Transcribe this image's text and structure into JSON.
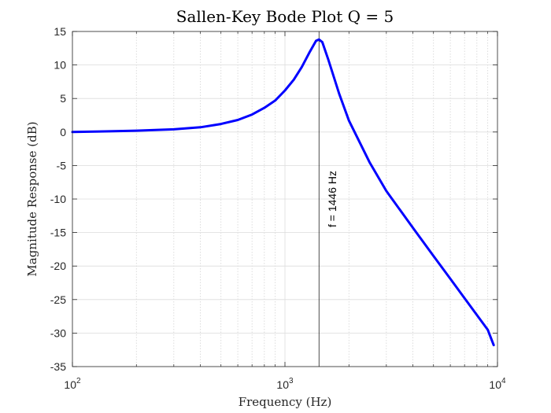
{
  "chart_data": {
    "type": "line",
    "title": "Sallen-Key Bode Plot Q = 5",
    "xlabel": "Frequency (Hz)",
    "ylabel": "Magnitude Response (dB)",
    "xscale": "log",
    "xlim": [
      100,
      10000
    ],
    "ylim": [
      -35,
      15
    ],
    "x_ticks": [
      {
        "base": "10",
        "exp": "2",
        "value": 100
      },
      {
        "base": "10",
        "exp": "3",
        "value": 1000
      },
      {
        "base": "10",
        "exp": "4",
        "value": 10000
      }
    ],
    "y_ticks": [
      15,
      10,
      5,
      0,
      -5,
      -10,
      -15,
      -20,
      -25,
      -30,
      -35
    ],
    "grid": true,
    "series": [
      {
        "color": "#0000ff",
        "x": [
          100,
          150,
          200,
          300,
          400,
          500,
          600,
          700,
          800,
          900,
          1000,
          1100,
          1200,
          1300,
          1400,
          1446,
          1500,
          1600,
          1800,
          2000,
          2500,
          3000,
          4000,
          5000,
          6000,
          7000,
          8000,
          9000,
          9600
        ],
        "y": [
          0.0,
          0.1,
          0.2,
          0.4,
          0.7,
          1.2,
          1.8,
          2.6,
          3.6,
          4.7,
          6.2,
          7.8,
          9.7,
          11.8,
          13.6,
          13.8,
          13.4,
          10.8,
          5.7,
          1.7,
          -4.5,
          -8.8,
          -14.3,
          -18.5,
          -21.9,
          -24.8,
          -27.3,
          -29.5,
          -31.8
        ]
      }
    ],
    "annotations": [
      {
        "text": "f = 1446 Hz",
        "x": 1446,
        "orientation": "vertical"
      }
    ]
  }
}
